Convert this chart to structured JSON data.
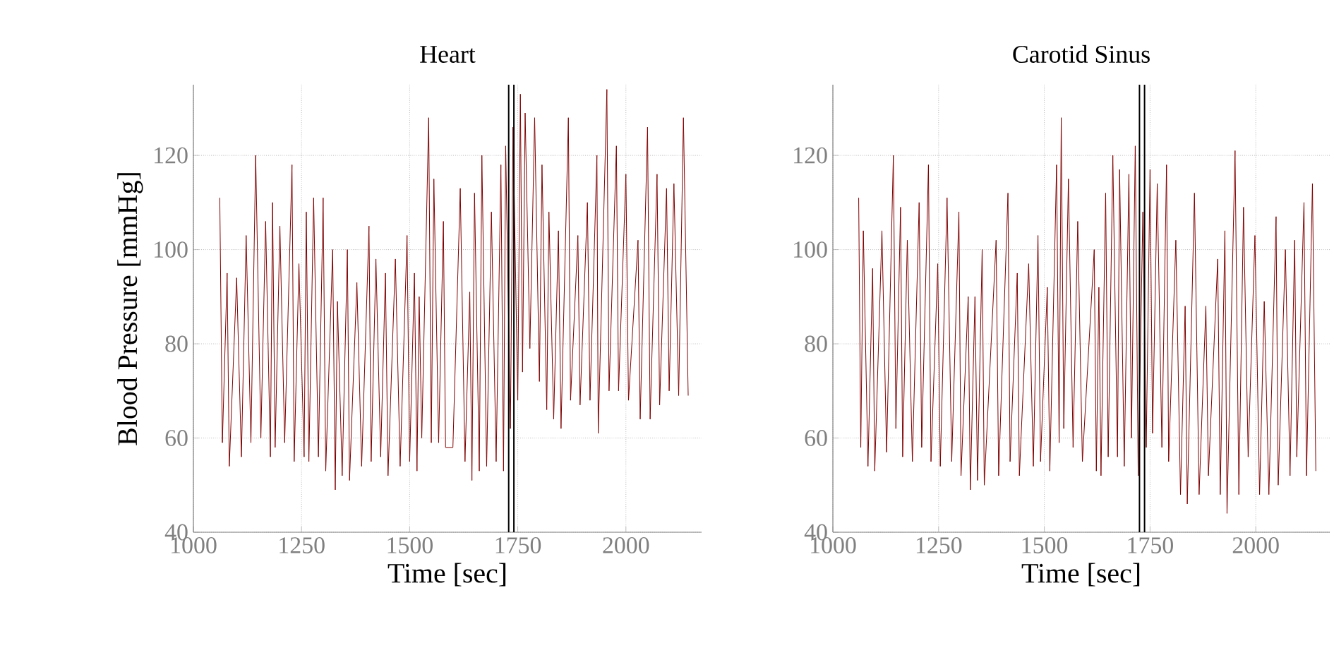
{
  "chart_data": [
    {
      "type": "line",
      "title": "Heart",
      "xlabel": "Time [sec]",
      "ylabel": "Blood Pressure [mmHg]",
      "xlim": [
        1000,
        2175
      ],
      "ylim": [
        40,
        135
      ],
      "xticks": [
        1000,
        1250,
        1500,
        1750,
        2000
      ],
      "yticks": [
        40,
        60,
        80,
        100,
        120
      ],
      "grid": true,
      "series": [
        {
          "color": "#800000",
          "x": [
            1061,
            1067,
            1078,
            1083,
            1100,
            1111,
            1122,
            1133,
            1144,
            1156,
            1167,
            1178,
            1183,
            1189,
            1200,
            1211,
            1228,
            1233,
            1244,
            1256,
            1261,
            1267,
            1278,
            1289,
            1300,
            1306,
            1322,
            1328,
            1333,
            1344,
            1356,
            1361,
            1378,
            1389,
            1406,
            1411,
            1422,
            1433,
            1444,
            1450,
            1467,
            1478,
            1494,
            1500,
            1511,
            1517,
            1522,
            1528,
            1544,
            1550,
            1556,
            1567,
            1578,
            1583,
            1600,
            1617,
            1628,
            1639,
            1644,
            1650,
            1661,
            1667,
            1678,
            1689,
            1700,
            1711,
            1717,
            1722,
            1733,
            1739,
            1750,
            1756,
            1761,
            1767,
            1778,
            1789,
            1800,
            1806,
            1817,
            1822,
            1833,
            1844,
            1850,
            1867,
            1872,
            1889,
            1894,
            1911,
            1917,
            1933,
            1936,
            1956,
            1961,
            1978,
            1983,
            2000,
            2006,
            2028,
            2033,
            2050,
            2056,
            2072,
            2078,
            2094,
            2100,
            2111,
            2122,
            2133,
            2144
          ],
          "values": [
            111,
            59,
            95,
            54,
            94,
            56,
            103,
            59,
            120,
            60,
            106,
            56,
            110,
            58,
            105,
            59,
            118,
            55,
            97,
            56,
            108,
            55,
            111,
            56,
            111,
            53,
            100,
            49,
            89,
            52,
            100,
            51,
            93,
            54,
            105,
            55,
            98,
            56,
            95,
            52,
            98,
            54,
            103,
            55,
            95,
            53,
            90,
            60,
            128,
            59,
            115,
            59,
            106,
            58,
            58,
            113,
            55,
            91,
            51,
            112,
            53,
            120,
            54,
            108,
            55,
            118,
            53,
            122,
            62,
            126,
            68,
            133,
            74,
            129,
            79,
            128,
            72,
            118,
            66,
            108,
            64,
            104,
            62,
            128,
            68,
            103,
            67,
            110,
            68,
            120,
            61,
            134,
            70,
            122,
            70,
            116,
            68,
            102,
            64,
            126,
            64,
            116,
            67,
            113,
            70,
            114,
            69,
            128,
            69
          ]
        }
      ],
      "ref_lines": [
        {
          "axis": "x",
          "value": 1729,
          "color": "#000000"
        },
        {
          "axis": "x",
          "value": 1741,
          "color": "#000000"
        }
      ]
    },
    {
      "type": "line",
      "title": "Carotid Sinus",
      "xlabel": "Time [sec]",
      "xlim": [
        1000,
        2175
      ],
      "ylim": [
        40,
        135
      ],
      "xticks": [
        1000,
        1250,
        1500,
        1750,
        2000
      ],
      "yticks": [
        40,
        60,
        80,
        100,
        120
      ],
      "grid": true,
      "series": [
        {
          "color": "#800000",
          "x": [
            1061,
            1066,
            1072,
            1083,
            1094,
            1099,
            1116,
            1127,
            1143,
            1149,
            1160,
            1165,
            1176,
            1188,
            1204,
            1210,
            1226,
            1232,
            1248,
            1254,
            1270,
            1281,
            1298,
            1303,
            1320,
            1325,
            1336,
            1342,
            1353,
            1358,
            1386,
            1392,
            1414,
            1419,
            1436,
            1441,
            1463,
            1474,
            1485,
            1491,
            1507,
            1513,
            1529,
            1535,
            1540,
            1546,
            1557,
            1568,
            1579,
            1590,
            1618,
            1623,
            1629,
            1634,
            1645,
            1651,
            1662,
            1673,
            1678,
            1689,
            1700,
            1706,
            1715,
            1722,
            1733,
            1741,
            1750,
            1756,
            1767,
            1778,
            1789,
            1794,
            1811,
            1822,
            1833,
            1838,
            1855,
            1866,
            1882,
            1888,
            1910,
            1916,
            1927,
            1932,
            1951,
            1960,
            1971,
            1982,
            1998,
            2009,
            2020,
            2031,
            2048,
            2053,
            2070,
            2081,
            2092,
            2097,
            2114,
            2120,
            2134,
            2142
          ],
          "values": [
            111,
            58,
            104,
            54,
            96,
            53,
            104,
            57,
            120,
            62,
            109,
            56,
            102,
            55,
            110,
            58,
            118,
            55,
            97,
            54,
            111,
            55,
            108,
            52,
            90,
            49,
            90,
            51,
            100,
            50,
            102,
            52,
            112,
            55,
            95,
            52,
            97,
            54,
            103,
            55,
            92,
            53,
            118,
            59,
            128,
            62,
            115,
            58,
            106,
            55,
            100,
            53,
            92,
            52,
            112,
            56,
            120,
            56,
            117,
            54,
            116,
            60,
            122,
            52,
            108,
            58,
            117,
            61,
            114,
            58,
            118,
            55,
            102,
            48,
            88,
            46,
            112,
            48,
            88,
            52,
            98,
            48,
            104,
            44,
            121,
            48,
            109,
            56,
            103,
            48,
            89,
            48,
            107,
            50,
            100,
            52,
            102,
            56,
            110,
            52,
            114,
            53
          ]
        }
      ],
      "ref_lines": [
        {
          "axis": "x",
          "value": 1725,
          "color": "#000000"
        },
        {
          "axis": "x",
          "value": 1737,
          "color": "#000000"
        }
      ]
    }
  ]
}
